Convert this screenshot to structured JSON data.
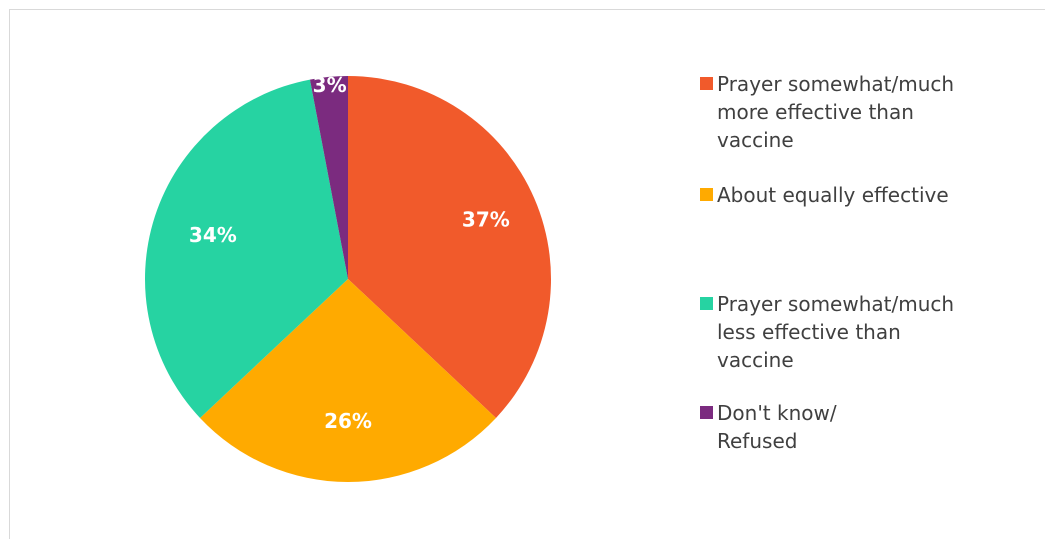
{
  "chart_data": {
    "type": "pie",
    "title": "",
    "slices": [
      {
        "label": "Prayer somewhat/much\nmore effective than\nvaccine",
        "value": 37,
        "display": "37%",
        "color": "#f15a2b"
      },
      {
        "label": "About equally effective",
        "value": 26,
        "display": "26%",
        "color": "#ffaa00"
      },
      {
        "label": "Prayer somewhat/much\nless effective than\nvaccine",
        "value": 34,
        "display": "34%",
        "color": "#26d3a2"
      },
      {
        "label": "Don't know/\nRefused",
        "value": 3,
        "display": "3%",
        "color": "#7b2b7f"
      }
    ],
    "start_angle": "12 o'clock",
    "direction": "clockwise",
    "legend_position": "right"
  }
}
